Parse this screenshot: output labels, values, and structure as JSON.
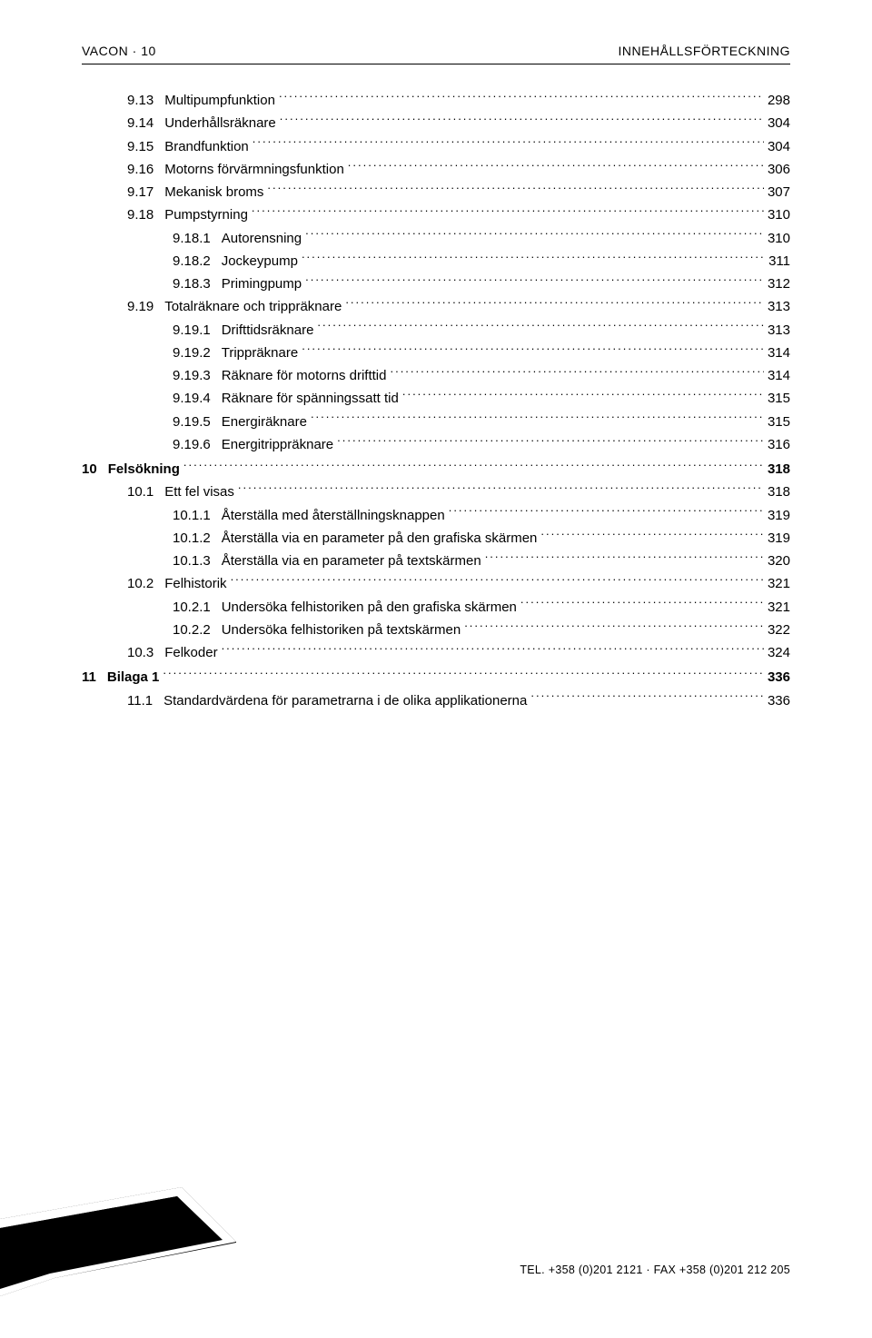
{
  "header": {
    "left": "VACON · 10",
    "right": "INNEHÅLLSFÖRTECKNING"
  },
  "toc": [
    {
      "level": 2,
      "num": "9.13",
      "title": "Multipumpfunktion",
      "page": "298"
    },
    {
      "level": 2,
      "num": "9.14",
      "title": "Underhållsräknare",
      "page": "304"
    },
    {
      "level": 2,
      "num": "9.15",
      "title": "Brandfunktion",
      "page": "304"
    },
    {
      "level": 2,
      "num": "9.16",
      "title": "Motorns förvärmningsfunktion",
      "page": "306"
    },
    {
      "level": 2,
      "num": "9.17",
      "title": "Mekanisk broms",
      "page": "307"
    },
    {
      "level": 2,
      "num": "9.18",
      "title": "Pumpstyrning",
      "page": "310"
    },
    {
      "level": 3,
      "num": "9.18.1",
      "title": "Autorensning",
      "page": "310"
    },
    {
      "level": 3,
      "num": "9.18.2",
      "title": "Jockeypump",
      "page": "311"
    },
    {
      "level": 3,
      "num": "9.18.3",
      "title": "Primingpump",
      "page": "312"
    },
    {
      "level": 2,
      "num": "9.19",
      "title": "Totalräknare och trippräknare",
      "page": "313"
    },
    {
      "level": 3,
      "num": "9.19.1",
      "title": "Drifttidsräknare",
      "page": "313"
    },
    {
      "level": 3,
      "num": "9.19.2",
      "title": "Trippräknare",
      "page": "314"
    },
    {
      "level": 3,
      "num": "9.19.3",
      "title": "Räknare för motorns drifttid",
      "page": "314"
    },
    {
      "level": 3,
      "num": "9.19.4",
      "title": "Räknare för spänningssatt tid",
      "page": "315"
    },
    {
      "level": 3,
      "num": "9.19.5",
      "title": "Energiräknare",
      "page": "315"
    },
    {
      "level": 3,
      "num": "9.19.6",
      "title": "Energitrippräknare",
      "page": "316"
    },
    {
      "level": 1,
      "num": "10",
      "title": "Felsökning",
      "page": "318",
      "chapter": true
    },
    {
      "level": 2,
      "num": "10.1",
      "title": "Ett fel visas",
      "page": "318"
    },
    {
      "level": 3,
      "num": "10.1.1",
      "title": "Återställa med återställningsknappen",
      "page": "319"
    },
    {
      "level": 3,
      "num": "10.1.2",
      "title": "Återställa via en parameter på den grafiska skärmen",
      "page": "319"
    },
    {
      "level": 3,
      "num": "10.1.3",
      "title": "Återställa via en parameter på textskärmen",
      "page": "320"
    },
    {
      "level": 2,
      "num": "10.2",
      "title": "Felhistorik",
      "page": "321"
    },
    {
      "level": 3,
      "num": "10.2.1",
      "title": "Undersöka felhistoriken på den grafiska skärmen",
      "page": "321"
    },
    {
      "level": 3,
      "num": "10.2.2",
      "title": "Undersöka felhistoriken på textskärmen",
      "page": "322"
    },
    {
      "level": 2,
      "num": "10.3",
      "title": "Felkoder",
      "page": "324"
    },
    {
      "level": 1,
      "num": "11",
      "title": "Bilaga 1",
      "page": "336",
      "chapter": true
    },
    {
      "level": 2,
      "num": "11.1",
      "title": "Standardvärdena för parametrarna i de olika applikationerna",
      "page": "336"
    }
  ],
  "footer": {
    "text": "TEL. +358 (0)201 2121 · FAX +358 (0)201 212 205"
  },
  "style": {
    "page_bg": "#ffffff",
    "text_color": "#000000",
    "header_fontsize": 14,
    "body_fontsize": 15,
    "footer_fontsize": 12.5,
    "corner_fill": "#000000"
  }
}
